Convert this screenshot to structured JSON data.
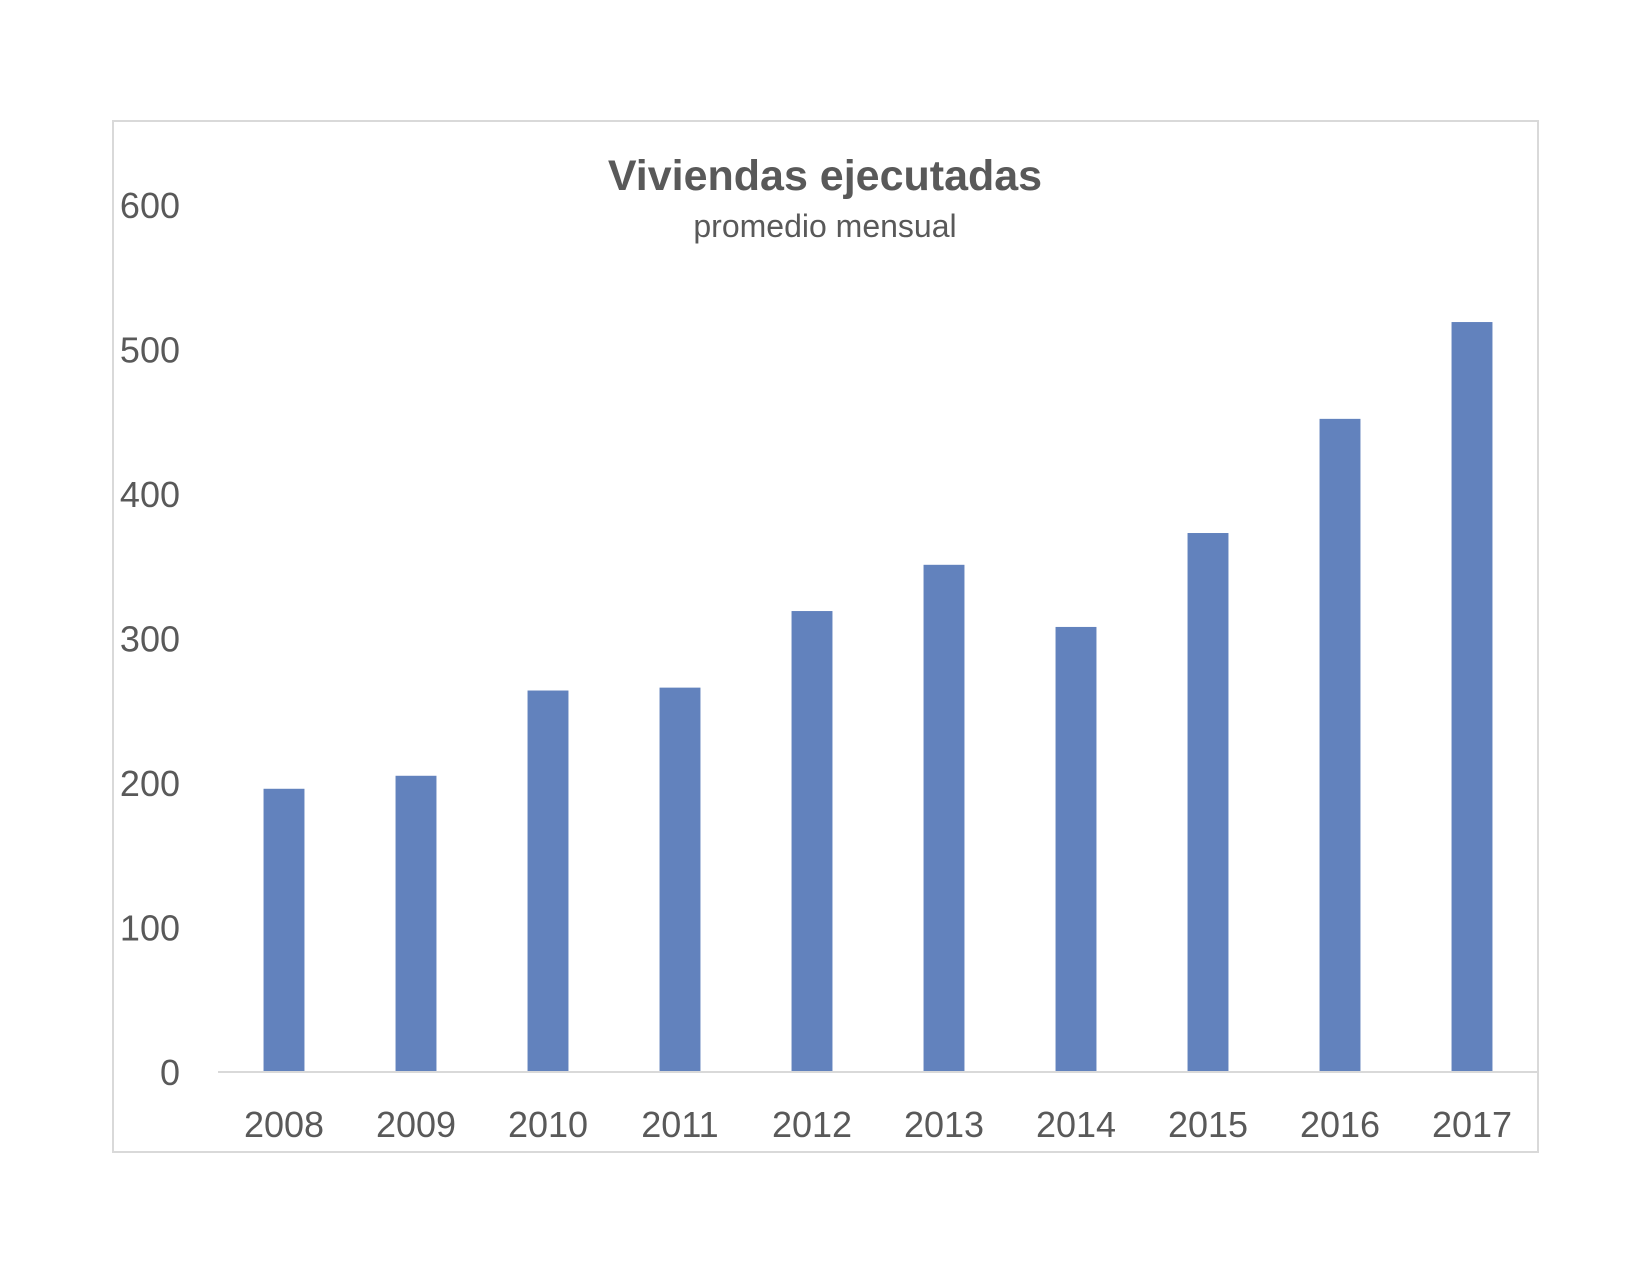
{
  "chart_data": {
    "type": "bar",
    "title": "Viviendas ejecutadas",
    "subtitle": "promedio mensual",
    "xlabel": "",
    "ylabel": "",
    "categories": [
      "2008",
      "2009",
      "2010",
      "2011",
      "2012",
      "2013",
      "2014",
      "2015",
      "2016",
      "2017"
    ],
    "series": [
      {
        "values": [
          196,
          205,
          264,
          266,
          319,
          351,
          308,
          373,
          452,
          519
        ]
      }
    ],
    "ylim": [
      0,
      600
    ],
    "yticks": [
      0,
      100,
      200,
      300,
      400,
      500,
      600
    ],
    "grid": false,
    "legend": "none",
    "colors": {
      "bar": "#6282bd",
      "text": "#595959",
      "axis": "#d9d9d9",
      "frame": "#d9d9d9",
      "background": "#ffffff"
    }
  }
}
